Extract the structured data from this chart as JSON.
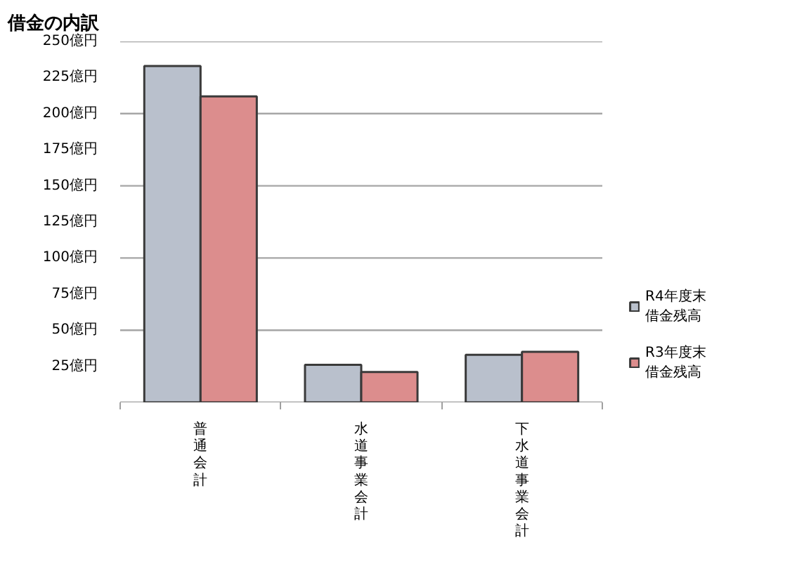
{
  "chart_data": {
    "type": "bar",
    "title": "借金の内訳",
    "categories": [
      "普通会計",
      "水道事業会計",
      "下水道事業会計"
    ],
    "series": [
      {
        "name": "R4年度末借金残高",
        "color": "#b9c0cc",
        "values": [
          233,
          26,
          33
        ]
      },
      {
        "name": "R3年度末借金残高",
        "color": "#dc8d8d",
        "values": [
          212,
          21,
          35
        ]
      }
    ],
    "ylim": [
      0,
      250
    ],
    "yticks": [
      {
        "value": 25,
        "label": "25億円"
      },
      {
        "value": 50,
        "label": "50億円"
      },
      {
        "value": 75,
        "label": "75億円"
      },
      {
        "value": 100,
        "label": "100億円"
      },
      {
        "value": 125,
        "label": "125億円"
      },
      {
        "value": 150,
        "label": "150億円"
      },
      {
        "value": 175,
        "label": "175億円"
      },
      {
        "value": 200,
        "label": "200億円"
      },
      {
        "value": 225,
        "label": "225億円"
      },
      {
        "value": 250,
        "label": "250億円"
      }
    ],
    "grid": "y",
    "legend": "right"
  }
}
